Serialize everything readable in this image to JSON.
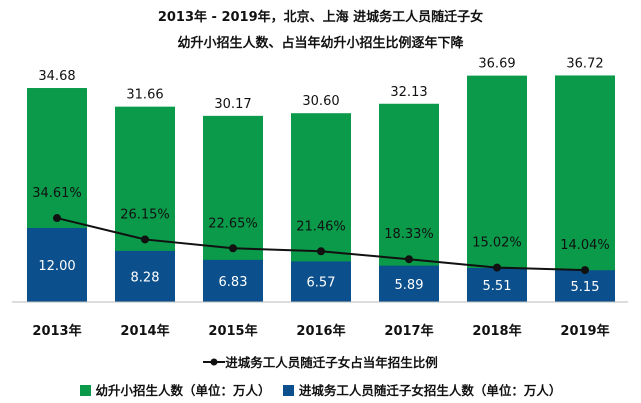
{
  "chart_data": {
    "type": "bar",
    "title": [
      "2013年 - 2019年，北京、上海 进城务工人员随迁子女",
      "幼升小招生人数、占当年幼升小招生比例逐年下降"
    ],
    "categories": [
      "2013年",
      "2014年",
      "2015年",
      "2016年",
      "2017年",
      "2018年",
      "2019年"
    ],
    "series": [
      {
        "name": "幼升小招生人数（单位：万人）",
        "type": "bar",
        "color": "#0a9a4a",
        "values": [
          34.68,
          31.66,
          30.17,
          30.6,
          32.13,
          36.69,
          36.72
        ],
        "labels": [
          "34.68",
          "31.66",
          "30.17",
          "30.60",
          "32.13",
          "36.69",
          "36.72"
        ]
      },
      {
        "name": "进城务工人员随迁子女招生人数（单位：万人）",
        "type": "bar",
        "color": "#0b4f8c",
        "values": [
          12.0,
          8.28,
          6.83,
          6.57,
          5.89,
          5.51,
          5.15
        ],
        "labels": [
          "12.00",
          "8.28",
          "6.83",
          "6.57",
          "5.89",
          "5.51",
          "5.15"
        ]
      },
      {
        "name": "进城务工人员随迁子女占当年招生比例",
        "type": "line",
        "color": "#111111",
        "unit": "%",
        "values": [
          34.61,
          26.15,
          22.65,
          21.46,
          18.33,
          15.02,
          14.04
        ],
        "labels": [
          "34.61%",
          "26.15%",
          "22.65%",
          "21.46%",
          "18.33%",
          "15.02%",
          "14.04%"
        ]
      }
    ],
    "legend_placement": "bottom",
    "grid": false,
    "yaxis_visible": false
  }
}
